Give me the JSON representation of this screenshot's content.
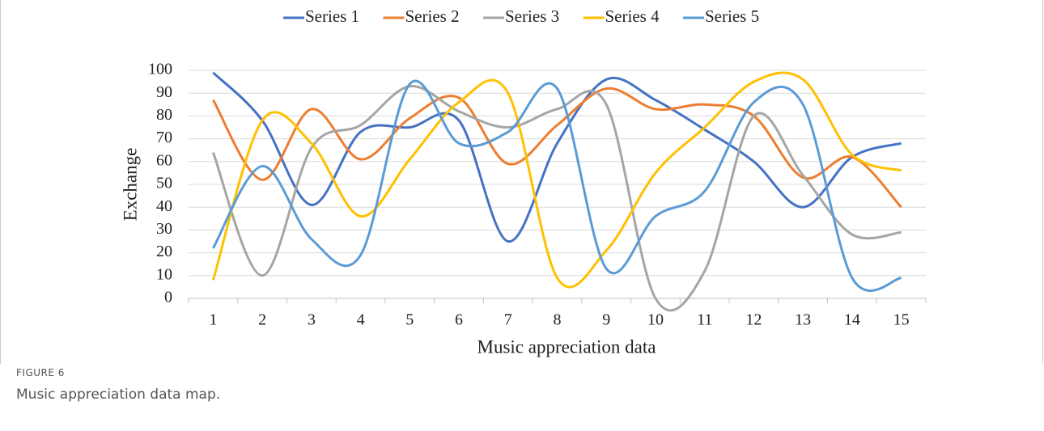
{
  "chart_data": {
    "type": "line",
    "smooth": true,
    "xlabel": "Music appreciation data",
    "ylabel": "Exchange",
    "categories": [
      "1",
      "2",
      "3",
      "4",
      "5",
      "6",
      "7",
      "8",
      "9",
      "10",
      "11",
      "12",
      "13",
      "14",
      "15"
    ],
    "series": [
      {
        "name": "Series 1",
        "color": "#4472c4",
        "values": [
          99,
          78,
          41,
          73,
          75,
          78,
          25,
          68,
          96,
          87,
          74,
          60,
          40,
          62,
          68
        ]
      },
      {
        "name": "Series 2",
        "color": "#ed7d31",
        "values": [
          87,
          52,
          83,
          61,
          79,
          88,
          59,
          76,
          92,
          83,
          85,
          80,
          53,
          62,
          40
        ]
      },
      {
        "name": "Series 3",
        "color": "#a5a5a5",
        "values": [
          64,
          10,
          66,
          76,
          93,
          82,
          75,
          83,
          85,
          0,
          12,
          80,
          54,
          28,
          29
        ]
      },
      {
        "name": "Series 4",
        "color": "#ffc000",
        "values": [
          8,
          78,
          68,
          36,
          61,
          86,
          90,
          9,
          21,
          55,
          75,
          95,
          96,
          63,
          56
        ]
      },
      {
        "name": "Series 5",
        "color": "#5b9bd5",
        "values": [
          22,
          58,
          26,
          19,
          94,
          68,
          73,
          92,
          13,
          36,
          47,
          86,
          85,
          9,
          9
        ]
      }
    ],
    "ylim": [
      0,
      100
    ],
    "yticks": [
      0,
      10,
      20,
      30,
      40,
      50,
      60,
      70,
      80,
      90,
      100
    ],
    "grid": true,
    "legend": "top"
  },
  "figure": {
    "label": "FIGURE 6",
    "caption": "Music appreciation data map."
  }
}
